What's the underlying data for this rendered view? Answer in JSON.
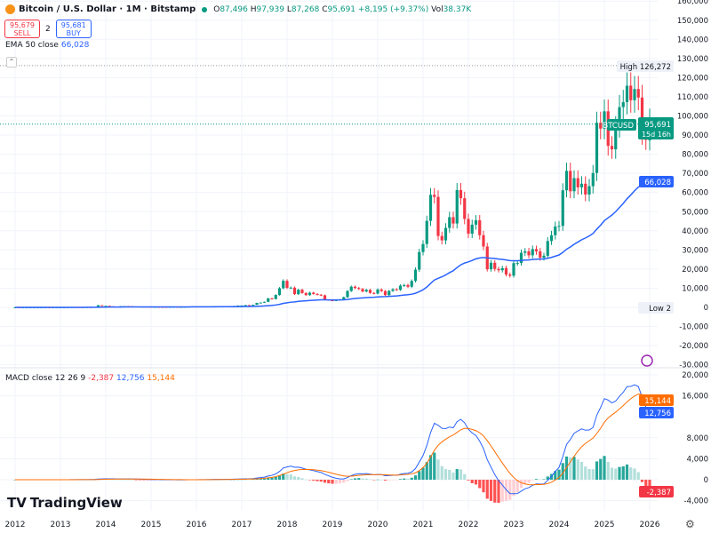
{
  "header": {
    "symbol": "Bitcoin / U.S. Dollar · 1M · Bitstamp",
    "open_label": "O",
    "open": "87,496",
    "high_label": "H",
    "high": "97,939",
    "low_label": "L",
    "low": "87,268",
    "close_label": "C",
    "close": "95,691",
    "change": "+8,195 (+9.37%)",
    "vol_label": "Vol",
    "vol": "38.37K"
  },
  "trade": {
    "sell_price": "95,679",
    "sell_label": "SELL",
    "spread": "2",
    "buy_price": "95,681",
    "buy_label": "BUY"
  },
  "ema": {
    "label": "EMA 50 close",
    "value": "66,028"
  },
  "macd": {
    "label": "MACD close 12 26 9",
    "hist": "-2,387",
    "macd": "12,756",
    "signal": "15,144"
  },
  "markers": {
    "high_label": "High",
    "high_value": "126,272",
    "low_label": "Low",
    "low_value": "2",
    "symbol_tag": "BTCUSD",
    "price_tag": "95,691",
    "countdown": "15d 16h",
    "ema_tag": "66,028"
  },
  "brand": "TradingView",
  "colors": {
    "up": "#089981",
    "down": "#f23645",
    "ema": "#2962ff",
    "macd": "#2962ff",
    "signal": "#ff6d00"
  },
  "chart_data": {
    "type": "candlestick",
    "timeframe": "1M",
    "start": "2012-01",
    "price_axis": {
      "ticks": [
        -30000,
        -20000,
        -10000,
        0,
        10000,
        20000,
        30000,
        40000,
        50000,
        60000,
        70000,
        80000,
        90000,
        100000,
        110000,
        120000,
        130000,
        140000,
        150000,
        160000
      ]
    },
    "macd_axis": {
      "ticks": [
        -4000,
        0,
        4000,
        8000,
        16000,
        20000
      ]
    },
    "time_axis": {
      "ticks": [
        "2012",
        "2013",
        "2014",
        "2015",
        "2016",
        "2017",
        "2018",
        "2019",
        "2020",
        "2021",
        "2022",
        "2023",
        "2024",
        "2025",
        "2026"
      ]
    },
    "all_time_high": 126272,
    "last_bar": {
      "open": 87496,
      "high": 97939,
      "low": 87268,
      "close": 95691
    },
    "monthly_close": [
      5.5,
      4.9,
      4.9,
      5,
      5.2,
      6.7,
      9.3,
      10,
      12.4,
      10.6,
      12.5,
      13.5,
      20,
      33,
      93,
      139,
      129,
      97,
      106,
      135,
      133,
      200,
      1130,
      730,
      800,
      550,
      450,
      440,
      630,
      640,
      590,
      480,
      390,
      340,
      375,
      320,
      220,
      255,
      245,
      235,
      230,
      263,
      285,
      230,
      236,
      315,
      378,
      430,
      370,
      437,
      415,
      455,
      530,
      670,
      625,
      575,
      610,
      700,
      745,
      960,
      970,
      1190,
      1080,
      1350,
      2300,
      2480,
      2870,
      4700,
      4340,
      6470,
      10000,
      13850,
      10200,
      10300,
      6900,
      9200,
      7500,
      6400,
      7700,
      7000,
      6600,
      6300,
      4000,
      3700,
      3450,
      3800,
      4100,
      5300,
      8550,
      10800,
      10100,
      9600,
      8300,
      9150,
      7550,
      7200,
      9350,
      8550,
      6400,
      8600,
      9450,
      9140,
      11350,
      11650,
      10780,
      13800,
      19700,
      28900,
      33100,
      45200,
      58800,
      57700,
      37300,
      35000,
      41500,
      47100,
      43800,
      61300,
      57000,
      46200,
      38500,
      43200,
      45500,
      37700,
      31800,
      19900,
      23300,
      20050,
      19400,
      20500,
      17150,
      16550,
      23100,
      23150,
      28500,
      29250,
      27200,
      30450,
      29250,
      25950,
      26950,
      34650,
      37700,
      42250,
      42550,
      61150,
      71300,
      60650,
      67500,
      62700,
      64600,
      58950,
      63300,
      70200,
      96400,
      93400,
      102400,
      84350,
      82550,
      94200,
      104600,
      107200,
      115800,
      108200,
      114050,
      109600,
      90400,
      87496,
      95691
    ]
  }
}
